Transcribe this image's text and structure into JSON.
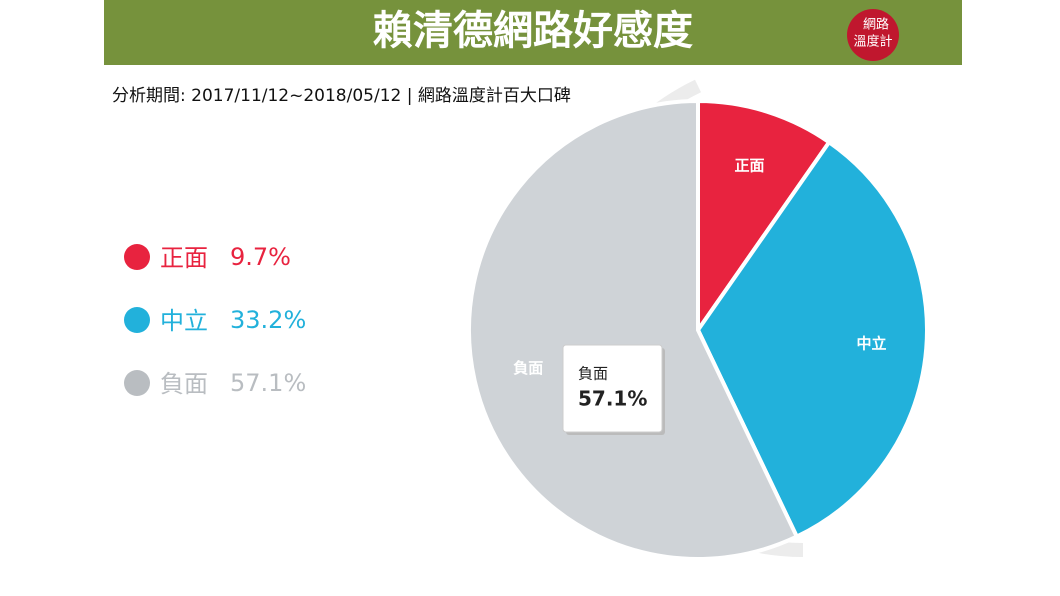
{
  "chart_data": {
    "type": "pie",
    "title": "賴清德網路好感度",
    "subtitle": "分析期間: 2017/11/12~2018/05/12 | 網路溫度計百大口碑",
    "logo": [
      "網路",
      "溫度計"
    ],
    "categories": [
      "正面",
      "中立",
      "負面"
    ],
    "values": [
      9.7,
      33.2,
      57.1
    ],
    "value_labels": [
      "9.7%",
      "33.2%",
      "57.1%"
    ],
    "colors": [
      "#e8233f",
      "#22b1db",
      "#cfd3d7"
    ],
    "tooltip_index": 2
  }
}
